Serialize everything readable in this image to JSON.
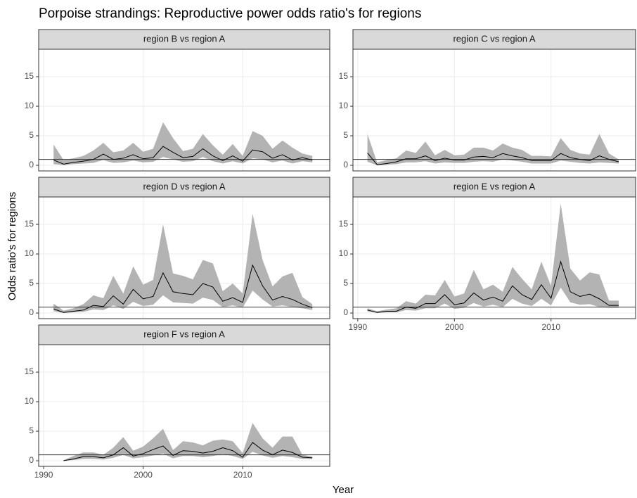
{
  "chart_data": {
    "type": "line",
    "title": "Porpoise strandings: Reproductive power odds ratio's for regions",
    "x_label": "Year",
    "y_label": "Odds ratio's for regions",
    "x": [
      1991,
      1992,
      1993,
      1994,
      1995,
      1996,
      1997,
      1998,
      1999,
      2000,
      2001,
      2002,
      2003,
      2004,
      2005,
      2006,
      2007,
      2008,
      2009,
      2010,
      2011,
      2012,
      2013,
      2014,
      2015,
      2016,
      2017
    ],
    "xlim": [
      1989.5,
      2018.75
    ],
    "xticks": [
      1990,
      2000,
      2010
    ],
    "ylim": [
      -0.95,
      19.65
    ],
    "yticks": [
      0,
      5,
      10,
      15
    ],
    "reference_line": 1,
    "grid": true,
    "line_color": "#000000",
    "band_color": "#b3b3b3",
    "panels": [
      {
        "title": "region B vs region A",
        "values": [
          0.9,
          0.2,
          0.5,
          0.7,
          1.0,
          1.9,
          1.0,
          1.2,
          1.8,
          1.1,
          1.3,
          3.2,
          2.2,
          1.3,
          1.5,
          2.8,
          1.6,
          0.8,
          1.6,
          0.7,
          2.6,
          2.3,
          1.2,
          1.8,
          0.9,
          1.3,
          0.9
        ],
        "upper": [
          3.5,
          0.9,
          1.2,
          1.6,
          2.5,
          3.8,
          2.2,
          2.5,
          3.8,
          2.3,
          2.8,
          7.3,
          4.6,
          2.4,
          2.8,
          5.3,
          3.4,
          1.8,
          3.6,
          1.6,
          5.8,
          5.0,
          2.8,
          4.2,
          3.0,
          2.0,
          1.6
        ],
        "lower": [
          0.2,
          0.05,
          0.2,
          0.3,
          0.4,
          0.9,
          0.4,
          0.5,
          0.8,
          0.5,
          0.6,
          1.4,
          1.0,
          0.6,
          0.7,
          1.4,
          0.7,
          0.3,
          0.7,
          0.3,
          1.2,
          1.0,
          0.5,
          0.8,
          0.3,
          0.7,
          0.5
        ]
      },
      {
        "title": "region C vs region A",
        "values": [
          2.1,
          0.1,
          0.3,
          0.6,
          1.1,
          1.1,
          1.6,
          0.8,
          1.2,
          0.9,
          0.9,
          1.4,
          1.5,
          1.3,
          2.0,
          1.6,
          1.3,
          0.8,
          0.8,
          0.8,
          2.0,
          1.3,
          1.0,
          0.8,
          1.6,
          1.0,
          0.6
        ],
        "upper": [
          5.3,
          0.5,
          0.9,
          1.2,
          2.5,
          2.1,
          4.0,
          1.7,
          2.6,
          1.7,
          1.8,
          3.0,
          3.0,
          2.5,
          3.7,
          3.0,
          2.6,
          1.6,
          1.6,
          1.5,
          4.6,
          2.6,
          2.0,
          1.8,
          5.3,
          2.0,
          1.0
        ],
        "lower": [
          0.6,
          0.02,
          0.1,
          0.2,
          0.5,
          0.5,
          0.7,
          0.3,
          0.5,
          0.4,
          0.4,
          0.6,
          0.7,
          0.6,
          1.0,
          0.8,
          0.6,
          0.3,
          0.3,
          0.3,
          0.8,
          0.6,
          0.4,
          0.3,
          0.5,
          0.4,
          0.3
        ]
      },
      {
        "title": "region D vs region A",
        "values": [
          0.7,
          0.1,
          0.3,
          0.5,
          1.3,
          1.1,
          2.9,
          1.5,
          4.0,
          2.4,
          2.8,
          6.8,
          3.6,
          3.3,
          3.1,
          5.0,
          4.4,
          2.0,
          2.6,
          1.8,
          8.1,
          4.6,
          2.2,
          2.8,
          2.3,
          1.5,
          0.9
        ],
        "upper": [
          1.6,
          0.4,
          0.8,
          1.5,
          3.0,
          2.5,
          6.3,
          3.3,
          7.9,
          4.8,
          5.6,
          15.0,
          6.7,
          6.3,
          5.7,
          9.0,
          8.4,
          3.7,
          5.0,
          3.3,
          16.8,
          9.0,
          4.5,
          6.2,
          6.8,
          2.7,
          1.5
        ],
        "lower": [
          0.3,
          0.02,
          0.1,
          0.2,
          0.6,
          0.5,
          1.3,
          0.7,
          1.9,
          1.2,
          1.4,
          3.0,
          1.8,
          1.7,
          1.6,
          2.6,
          2.2,
          1.0,
          1.3,
          0.9,
          3.8,
          2.3,
          1.1,
          1.3,
          1.0,
          0.8,
          0.5
        ]
      },
      {
        "title": "region E vs region A",
        "values": [
          0.5,
          0.1,
          0.3,
          0.3,
          1.0,
          0.8,
          1.6,
          1.6,
          3.1,
          1.4,
          1.7,
          3.4,
          2.2,
          2.7,
          2.0,
          4.6,
          3.1,
          2.3,
          4.8,
          2.5,
          8.7,
          3.6,
          2.8,
          3.2,
          2.4,
          1.3,
          1.3
        ],
        "upper": [
          0.8,
          0.3,
          0.6,
          0.8,
          2.0,
          1.6,
          3.1,
          3.0,
          5.6,
          2.8,
          3.3,
          7.3,
          4.0,
          4.8,
          3.6,
          7.8,
          5.8,
          4.0,
          8.7,
          4.6,
          18.5,
          7.5,
          5.5,
          6.9,
          6.5,
          2.1,
          2.1
        ],
        "lower": [
          0.3,
          0.03,
          0.1,
          0.1,
          0.5,
          0.4,
          0.8,
          0.8,
          1.6,
          0.7,
          0.9,
          1.7,
          1.1,
          1.4,
          1.0,
          2.4,
          1.6,
          1.2,
          2.4,
          1.3,
          4.3,
          1.8,
          1.4,
          1.5,
          1.0,
          0.9,
          0.9
        ]
      },
      {
        "title": "region F vs region A",
        "values": [
          null,
          0.0,
          0.3,
          0.7,
          0.7,
          0.5,
          1.0,
          2.2,
          0.8,
          1.2,
          1.9,
          2.5,
          0.9,
          1.7,
          1.6,
          1.3,
          1.6,
          2.2,
          1.7,
          0.6,
          3.1,
          1.8,
          1.0,
          1.8,
          1.4,
          0.6,
          0.5
        ],
        "upper": [
          null,
          0.1,
          0.8,
          1.4,
          1.4,
          1.0,
          2.2,
          4.0,
          1.7,
          2.4,
          3.8,
          5.4,
          1.8,
          3.3,
          3.1,
          2.6,
          3.4,
          3.6,
          3.3,
          1.3,
          6.4,
          3.8,
          2.2,
          4.1,
          4.1,
          1.0,
          0.7
        ],
        "lower": [
          null,
          0.0,
          0.1,
          0.3,
          0.3,
          0.2,
          0.5,
          1.0,
          0.4,
          0.6,
          0.9,
          1.2,
          0.4,
          0.8,
          0.8,
          0.6,
          0.8,
          1.1,
          0.8,
          0.3,
          1.5,
          0.9,
          0.5,
          0.8,
          0.6,
          0.3,
          0.3
        ]
      }
    ]
  }
}
